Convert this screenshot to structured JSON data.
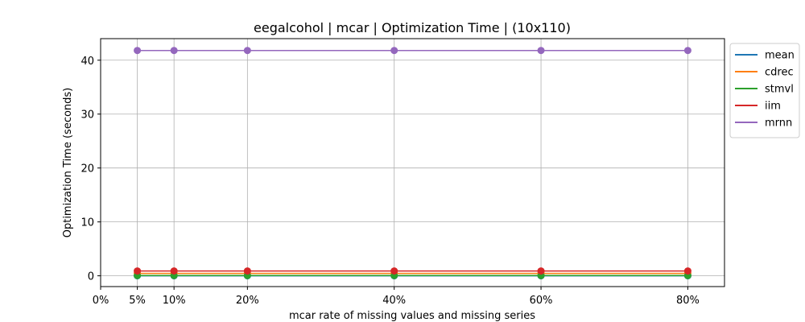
{
  "chart_data": {
    "type": "line",
    "title": "eegalcohol | mcar | Optimization Time | (10x110)",
    "xlabel": "mcar rate of missing values and missing series",
    "ylabel": "Optimization Time (seconds)",
    "x": [
      5,
      10,
      20,
      40,
      60,
      80
    ],
    "xticks": [
      0,
      5,
      10,
      20,
      40,
      60,
      80
    ],
    "xtick_labels": [
      "0%",
      "5%",
      "10%",
      "20%",
      "40%",
      "60%",
      "80%"
    ],
    "xlim": [
      0,
      85
    ],
    "yticks": [
      0,
      10,
      20,
      30,
      40
    ],
    "ytick_labels": [
      "0",
      "10",
      "20",
      "30",
      "40"
    ],
    "ylim": [
      -2,
      44
    ],
    "grid": true,
    "legend_position": "outside-top-right",
    "series": [
      {
        "name": "mean",
        "color": "#1f77b4",
        "values": [
          0.0,
          0.0,
          0.0,
          0.0,
          0.0,
          0.0
        ]
      },
      {
        "name": "cdrec",
        "color": "#ff7f0e",
        "values": [
          0.45,
          0.45,
          0.45,
          0.45,
          0.45,
          0.45
        ]
      },
      {
        "name": "stmvl",
        "color": "#2ca02c",
        "values": [
          0.05,
          0.05,
          0.05,
          0.05,
          0.05,
          0.05
        ]
      },
      {
        "name": "iim",
        "color": "#d62728",
        "values": [
          0.9,
          0.9,
          0.9,
          0.9,
          0.9,
          0.9
        ]
      },
      {
        "name": "mrnn",
        "color": "#9467bd",
        "values": [
          41.8,
          41.8,
          41.8,
          41.8,
          41.8,
          41.8
        ]
      }
    ]
  }
}
